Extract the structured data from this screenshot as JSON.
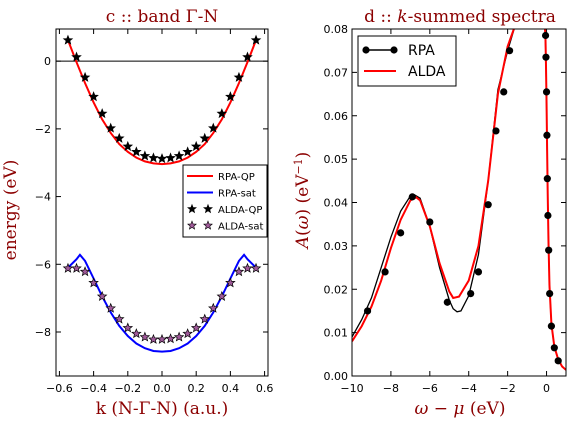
{
  "chart_data": [
    {
      "type": "line",
      "panel_title": "c :: band Γ-N",
      "xlabel": "k (N-Γ-N) (a.u.)",
      "ylabel": "energy (eV)",
      "xlim": [
        -0.62,
        0.62
      ],
      "ylim": [
        -9.3,
        0.95
      ],
      "xticks": [
        -0.6,
        -0.4,
        -0.2,
        0.0,
        0.2,
        0.4,
        0.6
      ],
      "xtick_labels": [
        "−0.6",
        "−0.4",
        "−0.2",
        "0.0",
        "0.2",
        "0.4",
        "0.6"
      ],
      "yticks": [
        0,
        -2,
        -4,
        -6,
        -8
      ],
      "ytick_labels": [
        "0",
        "−2",
        "−4",
        "−6",
        "−8"
      ],
      "reference_line": 0,
      "legend": {
        "placement": "center-right"
      },
      "series": [
        {
          "name": "RPA-QP",
          "style": "line",
          "color": "#ff0000",
          "x": [
            -0.55,
            -0.5,
            -0.45,
            -0.4,
            -0.35,
            -0.3,
            -0.25,
            -0.2,
            -0.15,
            -0.1,
            -0.05,
            0.0,
            0.05,
            0.1,
            0.15,
            0.2,
            0.25,
            0.3,
            0.35,
            0.4,
            0.45,
            0.5,
            0.55
          ],
          "y": [
            0.62,
            -0.03,
            -0.65,
            -1.22,
            -1.72,
            -2.12,
            -2.45,
            -2.68,
            -2.85,
            -2.96,
            -3.02,
            -3.04,
            -3.02,
            -2.96,
            -2.85,
            -2.68,
            -2.45,
            -2.12,
            -1.72,
            -1.22,
            -0.65,
            -0.03,
            0.62
          ]
        },
        {
          "name": "RPA-sat",
          "style": "line",
          "color": "#0000ff",
          "x": [
            -0.55,
            -0.5,
            -0.48,
            -0.45,
            -0.4,
            -0.35,
            -0.3,
            -0.25,
            -0.2,
            -0.15,
            -0.1,
            -0.05,
            0.0,
            0.05,
            0.1,
            0.15,
            0.2,
            0.25,
            0.3,
            0.35,
            0.4,
            0.45,
            0.48,
            0.5,
            0.55
          ],
          "y": [
            -6.1,
            -5.85,
            -5.72,
            -5.9,
            -6.42,
            -6.95,
            -7.42,
            -7.82,
            -8.12,
            -8.34,
            -8.48,
            -8.56,
            -8.58,
            -8.56,
            -8.48,
            -8.34,
            -8.12,
            -7.82,
            -7.42,
            -6.95,
            -6.42,
            -5.9,
            -5.72,
            -5.85,
            -6.1
          ]
        },
        {
          "name": "ALDA-QP",
          "style": "marker-star",
          "color": "#000000",
          "x": [
            -0.55,
            -0.5,
            -0.45,
            -0.4,
            -0.35,
            -0.3,
            -0.25,
            -0.2,
            -0.15,
            -0.1,
            -0.05,
            0.0,
            0.05,
            0.1,
            0.15,
            0.2,
            0.25,
            0.3,
            0.35,
            0.4,
            0.45,
            0.5,
            0.55
          ],
          "y": [
            0.62,
            0.12,
            -0.48,
            -1.05,
            -1.55,
            -1.98,
            -2.28,
            -2.52,
            -2.68,
            -2.8,
            -2.86,
            -2.88,
            -2.86,
            -2.8,
            -2.68,
            -2.52,
            -2.28,
            -1.98,
            -1.55,
            -1.05,
            -0.48,
            0.12,
            0.62
          ]
        },
        {
          "name": "ALDA-sat",
          "style": "marker-star",
          "color": "#a05a9a",
          "x": [
            -0.55,
            -0.5,
            -0.45,
            -0.4,
            -0.35,
            -0.3,
            -0.25,
            -0.2,
            -0.15,
            -0.1,
            -0.05,
            0.0,
            0.05,
            0.1,
            0.15,
            0.2,
            0.25,
            0.3,
            0.35,
            0.4,
            0.45,
            0.5,
            0.55
          ],
          "y": [
            -6.12,
            -6.12,
            -6.22,
            -6.55,
            -6.95,
            -7.3,
            -7.62,
            -7.88,
            -8.05,
            -8.15,
            -8.22,
            -8.22,
            -8.2,
            -8.15,
            -8.05,
            -7.88,
            -7.62,
            -7.3,
            -6.95,
            -6.55,
            -6.22,
            -6.12,
            -6.12
          ]
        }
      ]
    },
    {
      "type": "line",
      "panel_title": "d :: k-summed spectra",
      "xlabel": "ω − μ (eV)",
      "ylabel": "A(ω) (eV⁻¹)",
      "xlim": [
        -10,
        1
      ],
      "ylim": [
        0,
        0.08
      ],
      "xticks": [
        -10,
        -8,
        -6,
        -4,
        -2,
        0
      ],
      "xtick_labels": [
        "−10",
        "−8",
        "−6",
        "−4",
        "−2",
        "0"
      ],
      "yticks": [
        0,
        0.01,
        0.02,
        0.03,
        0.04,
        0.05,
        0.06,
        0.07,
        0.08
      ],
      "ytick_labels": [
        "0.00",
        "0.01",
        "0.02",
        "0.03",
        "0.04",
        "0.05",
        "0.06",
        "0.07",
        "0.08"
      ],
      "legend": {
        "placement": "top-left"
      },
      "series": [
        {
          "name": "RPA",
          "style": "line-marker",
          "color": "#000000",
          "x": [
            -10,
            -9.5,
            -9,
            -8.5,
            -8,
            -7.5,
            -7,
            -6.8,
            -6.5,
            -6,
            -5.5,
            -5,
            -4.8,
            -4.6,
            -4.4,
            -4,
            -3.5,
            -3,
            -2.5,
            -2,
            -1.6,
            -1.3
          ],
          "y": [
            0.009,
            0.013,
            0.018,
            0.025,
            0.032,
            0.038,
            0.0415,
            0.0418,
            0.041,
            0.0345,
            0.025,
            0.0175,
            0.0155,
            0.0148,
            0.015,
            0.0185,
            0.028,
            0.045,
            0.066,
            0.075,
            0.081,
            0.081
          ],
          "marker_x": [
            -9.2,
            -8.3,
            -7.5,
            -6.9,
            -6.0,
            -5.1,
            -3.9,
            -3.5,
            -3.0,
            -2.6,
            -2.2,
            -1.9
          ],
          "marker_y": [
            0.015,
            0.024,
            0.033,
            0.0413,
            0.0355,
            0.017,
            0.019,
            0.024,
            0.0395,
            0.0565,
            0.0655,
            0.075
          ]
        },
        {
          "name": "ALDA",
          "style": "line",
          "color": "#ff0000",
          "x": [
            -10,
            -9.5,
            -9,
            -8.5,
            -8,
            -7.5,
            -7,
            -6.7,
            -6.5,
            -6,
            -5.5,
            -5,
            -4.8,
            -4.5,
            -4,
            -3.5,
            -3,
            -2.5,
            -2,
            -1.6,
            -1.3
          ],
          "y": [
            0.008,
            0.0115,
            0.016,
            0.022,
            0.0295,
            0.036,
            0.0405,
            0.0412,
            0.0405,
            0.0345,
            0.026,
            0.0195,
            0.018,
            0.0183,
            0.022,
            0.03,
            0.045,
            0.065,
            0.076,
            0.081,
            0.081
          ]
        }
      ],
      "peak_series": [
        {
          "name": "RPA",
          "marker_x": [
            -0.05,
            -0.03,
            0.0,
            0.02,
            0.04,
            0.07,
            0.11,
            0.16,
            0.25,
            0.4,
            0.6
          ],
          "marker_y": [
            0.0785,
            0.0735,
            0.0655,
            0.0555,
            0.0455,
            0.037,
            0.029,
            0.019,
            0.0115,
            0.0065,
            0.0035
          ]
        },
        {
          "name": "ALDA",
          "x": [
            -0.1,
            -0.06,
            -0.03,
            0.0,
            0.03,
            0.06,
            0.1,
            0.15,
            0.25,
            0.4,
            0.6,
            0.8,
            1.0
          ],
          "y": [
            0.081,
            0.079,
            0.072,
            0.063,
            0.052,
            0.042,
            0.031,
            0.021,
            0.012,
            0.0068,
            0.0038,
            0.0022,
            0.0014
          ]
        }
      ]
    }
  ]
}
